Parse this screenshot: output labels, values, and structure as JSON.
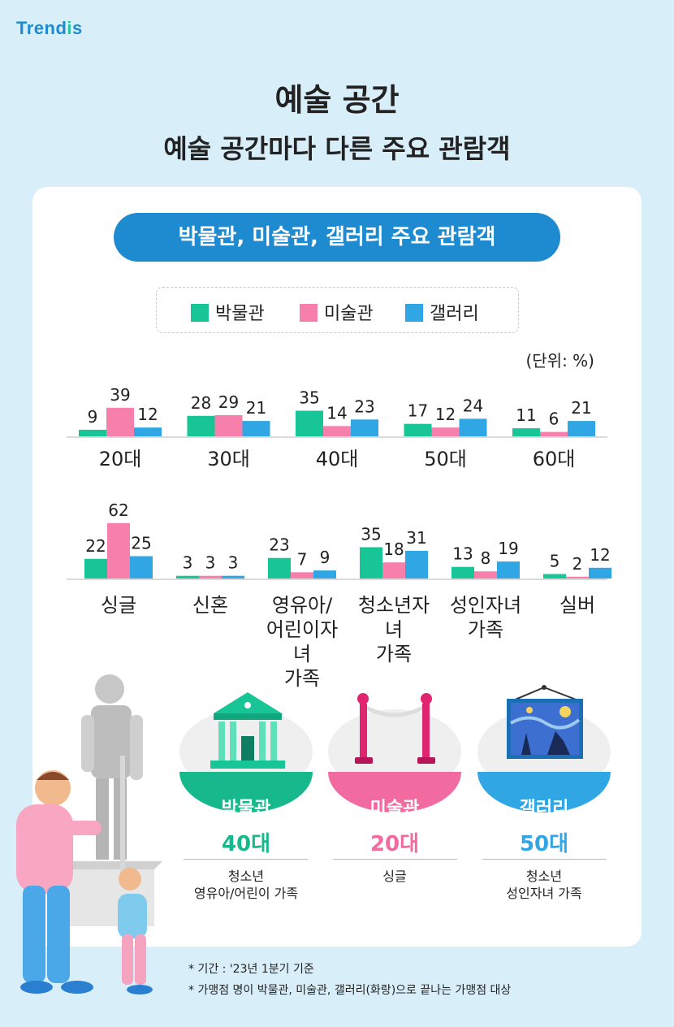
{
  "logo": {
    "prefix": "Trend",
    "dot": "i",
    "suffix": "s"
  },
  "title": "예술 공간",
  "subtitle": "예술 공간마다 다른 주요 관람객",
  "section_title": "박물관, 미술관, 갤러리 주요 관람객",
  "legend": [
    {
      "label": "박물관",
      "color": "#17c596"
    },
    {
      "label": "미술관",
      "color": "#f77fac"
    },
    {
      "label": "갤러리",
      "color": "#30a7e4"
    }
  ],
  "unit_label": "(단위: %)",
  "chart_data": [
    {
      "type": "bar",
      "categories": [
        "20대",
        "30대",
        "40대",
        "50대",
        "60대"
      ],
      "series": [
        {
          "name": "박물관",
          "values": [
            9,
            28,
            35,
            17,
            11
          ]
        },
        {
          "name": "미술관",
          "values": [
            39,
            29,
            14,
            12,
            6
          ]
        },
        {
          "name": "갤러리",
          "values": [
            12,
            21,
            23,
            24,
            21
          ]
        }
      ],
      "unit": "%",
      "data_labels": true
    },
    {
      "type": "bar",
      "categories": [
        "싱글",
        "신혼",
        "영유아/어린이자녀 가족",
        "청소년자녀 가족",
        "성인자녀 가족",
        "실버"
      ],
      "category_lines": [
        [
          "싱글"
        ],
        [
          "신혼"
        ],
        [
          "영유아/",
          "어린이자녀",
          "가족"
        ],
        [
          "청소년자녀",
          "가족"
        ],
        [
          "성인자녀",
          "가족"
        ],
        [
          "실버"
        ]
      ],
      "series": [
        {
          "name": "박물관",
          "values": [
            22,
            3,
            23,
            35,
            13,
            5
          ]
        },
        {
          "name": "미술관",
          "values": [
            62,
            3,
            7,
            18,
            8,
            2
          ]
        },
        {
          "name": "갤러리",
          "values": [
            25,
            3,
            9,
            31,
            19,
            12
          ]
        }
      ],
      "unit": "%",
      "data_labels": true
    }
  ],
  "summary": [
    {
      "name": "박물관",
      "age": "40대",
      "desc1": "청소년",
      "desc2": "영유아/어린이 가족",
      "color": "#17b88c"
    },
    {
      "name": "미술관",
      "age": "20대",
      "desc1": "싱글",
      "desc2": "",
      "color": "#f16aa0"
    },
    {
      "name": "갤러리",
      "age": "50대",
      "desc1": "청소년",
      "desc2": "성인자녀 가족",
      "color": "#30a7e4"
    }
  ],
  "notes": [
    "* 기간 : '23년 1분기 기준",
    "* 가맹점 명이 박물관, 미술관, 갤러리(화랑)으로 끝나는 가맹점 대상"
  ]
}
